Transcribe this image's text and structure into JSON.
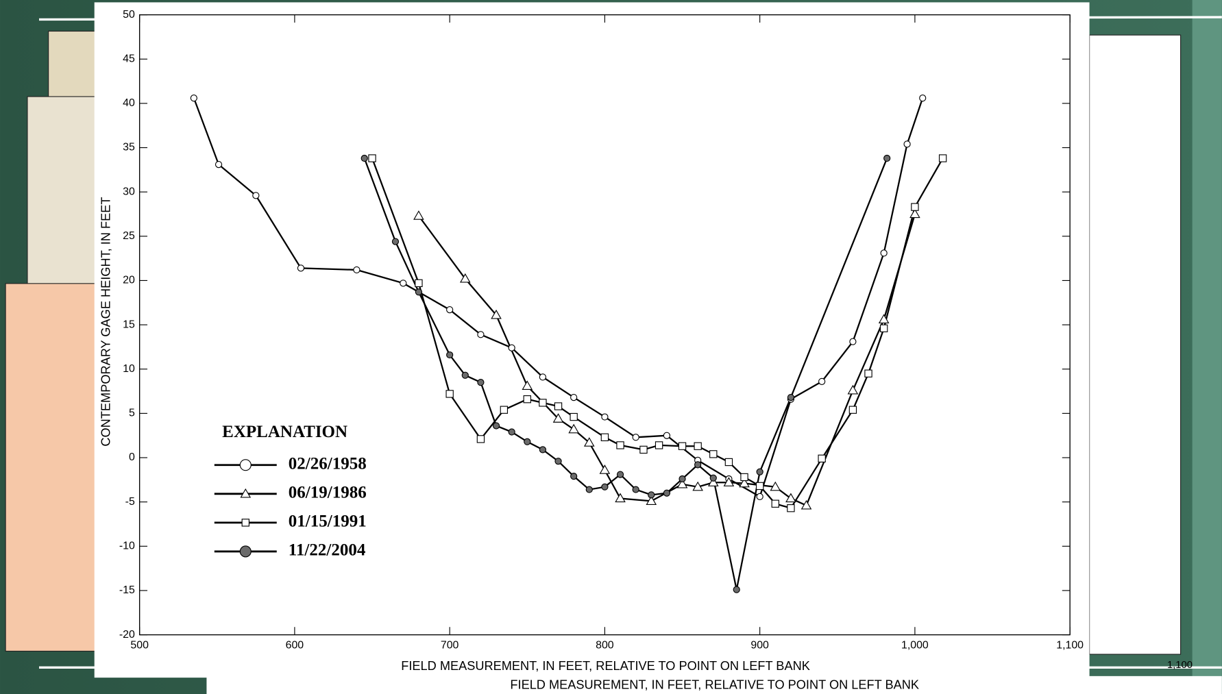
{
  "chart_data": {
    "type": "line",
    "x_label": "FIELD MEASUREMENT, IN FEET, RELATIVE TO POINT ON LEFT BANK",
    "y_label": "CONTEMPORARY GAGE HEIGHT, IN FEET",
    "legend_title": "EXPLANATION",
    "legend_position": "lower left",
    "xlim": [
      500,
      1100
    ],
    "xticks": [
      500,
      600,
      700,
      800,
      900,
      {
        "value": 1000,
        "label": "1,000"
      },
      {
        "value": 1100,
        "label": "1,100"
      }
    ],
    "ylim": [
      -20,
      50
    ],
    "yticks": [
      -20,
      -15,
      -10,
      -5,
      0,
      5,
      10,
      15,
      20,
      25,
      30,
      35,
      40,
      45,
      50
    ],
    "series": [
      {
        "name": "02/26/1958",
        "color": "#000000",
        "marker": "circle",
        "marker_fill": "#ffffff",
        "x": [
          535,
          551,
          575,
          604,
          640,
          670,
          700,
          720,
          740,
          760,
          780,
          800,
          820,
          840,
          860,
          880,
          900,
          920,
          940,
          960,
          980,
          995,
          1005
        ],
        "values": [
          40.6,
          33.1,
          29.6,
          21.4,
          21.2,
          19.7,
          16.7,
          13.9,
          12.4,
          9.1,
          6.8,
          4.6,
          2.3,
          2.5,
          -0.3,
          -2.4,
          -4.4,
          6.6,
          8.6,
          13.1,
          23.1,
          35.4,
          40.6
        ]
      },
      {
        "name": "06/19/1986",
        "color": "#000000",
        "marker": "triangle",
        "marker_fill": "#ffffff",
        "x": [
          680,
          710,
          730,
          750,
          770,
          780,
          790,
          800,
          810,
          830,
          850,
          860,
          870,
          880,
          890,
          910,
          920,
          930,
          960,
          980,
          1000
        ],
        "values": [
          27.3,
          20.2,
          16.1,
          8.1,
          4.4,
          3.2,
          1.7,
          -1.4,
          -4.6,
          -4.9,
          -3.0,
          -3.3,
          -2.8,
          -2.8,
          -2.9,
          -3.3,
          -4.6,
          -5.4,
          7.6,
          15.6,
          27.5
        ]
      },
      {
        "name": "01/15/1991",
        "color": "#000000",
        "marker": "square",
        "marker_fill": "#ffffff",
        "x": [
          650,
          680,
          700,
          720,
          735,
          750,
          760,
          770,
          780,
          800,
          810,
          825,
          835,
          850,
          860,
          870,
          880,
          890,
          900,
          910,
          920,
          940,
          960,
          970,
          980,
          1000,
          1018
        ],
        "values": [
          33.8,
          19.7,
          7.2,
          2.1,
          5.4,
          6.6,
          6.2,
          5.8,
          4.6,
          2.3,
          1.4,
          0.9,
          1.4,
          1.3,
          1.3,
          0.4,
          -0.5,
          -2.2,
          -3.2,
          -5.2,
          -5.7,
          -0.1,
          5.4,
          9.5,
          14.6,
          28.3,
          33.8
        ]
      },
      {
        "name": "11/22/2004",
        "color": "#000000",
        "marker": "circle",
        "marker_fill": "#6b6b6b",
        "x": [
          645,
          665,
          680,
          700,
          710,
          720,
          730,
          740,
          750,
          760,
          770,
          780,
          790,
          800,
          810,
          820,
          830,
          840,
          850,
          860,
          870,
          885,
          900,
          920,
          982
        ],
        "values": [
          33.8,
          24.4,
          18.7,
          11.6,
          9.3,
          8.5,
          3.6,
          2.9,
          1.8,
          0.9,
          -0.4,
          -2.1,
          -3.6,
          -3.3,
          -1.9,
          -3.6,
          -4.2,
          -4.0,
          -2.4,
          -0.8,
          -2.3,
          -14.9,
          -1.6,
          6.8,
          33.8
        ]
      }
    ]
  },
  "background": {
    "x_label": "FIELD MEASUREMENT, IN FEET, RELATIVE TO POINT ON LEFT BANK",
    "x_tick": "1,100"
  }
}
